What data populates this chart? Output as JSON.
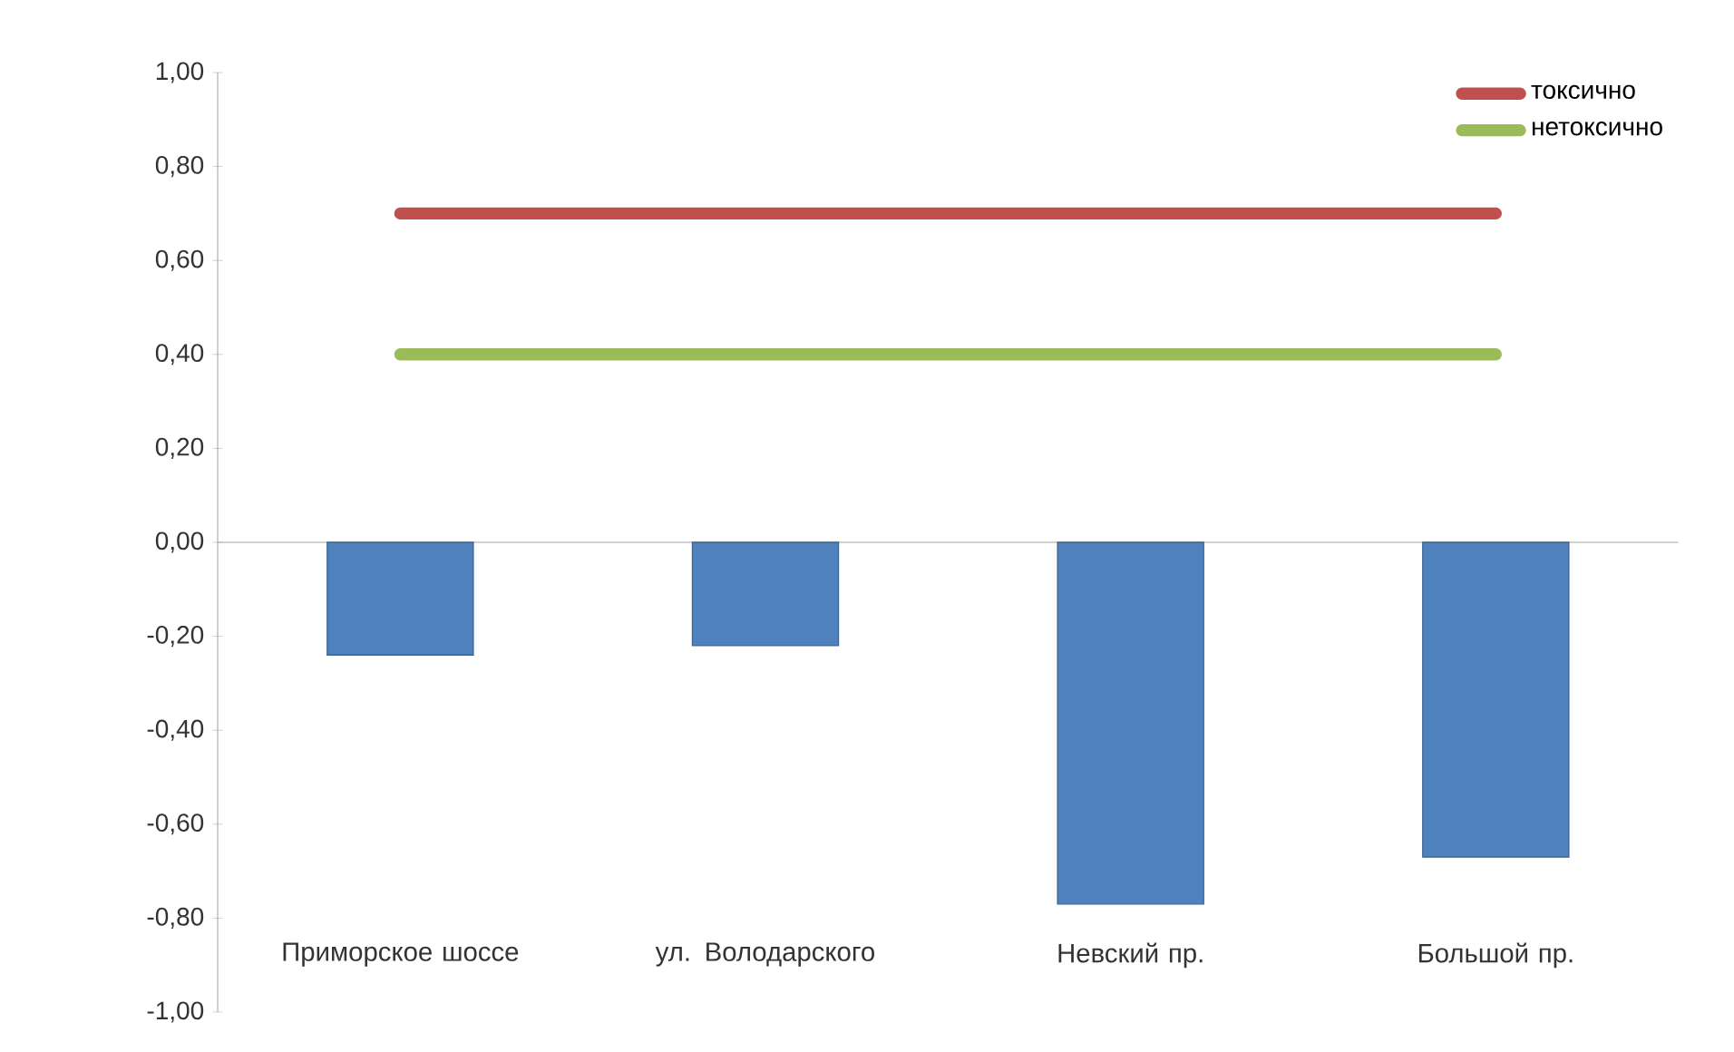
{
  "chart_data": {
    "type": "bar",
    "categories": [
      "Приморское шоссе",
      "ул. Володарского",
      "Невский пр.",
      "Большой пр."
    ],
    "series": [
      {
        "color": "#4f81bd",
        "values": [
          -0.24,
          -0.22,
          -0.77,
          -0.67
        ]
      },
      {
        "type": "line",
        "name": "токсично",
        "color": "#c0504d",
        "values": [
          0.7,
          0.7,
          0.7,
          0.7
        ]
      },
      {
        "type": "line",
        "name": "нетоксично",
        "color": "#9bbb59",
        "values": [
          0.4,
          0.4,
          0.4,
          0.4
        ]
      }
    ],
    "ylim": [
      -1.0,
      1.0
    ],
    "yticks": [
      {
        "value": -1.0,
        "label": "-1,00"
      },
      {
        "value": -0.8,
        "label": "-0,80"
      },
      {
        "value": -0.6,
        "label": "-0,60"
      },
      {
        "value": -0.4,
        "label": "-0,40"
      },
      {
        "value": -0.2,
        "label": "-0,20"
      },
      {
        "value": 0.0,
        "label": "0,00"
      },
      {
        "value": 0.2,
        "label": "0,20"
      },
      {
        "value": 0.4,
        "label": "0,40"
      },
      {
        "value": 0.6,
        "label": "0,60"
      },
      {
        "value": 0.8,
        "label": "0,80"
      },
      {
        "value": 1.0,
        "label": "1,00"
      }
    ],
    "legend": "top right"
  }
}
